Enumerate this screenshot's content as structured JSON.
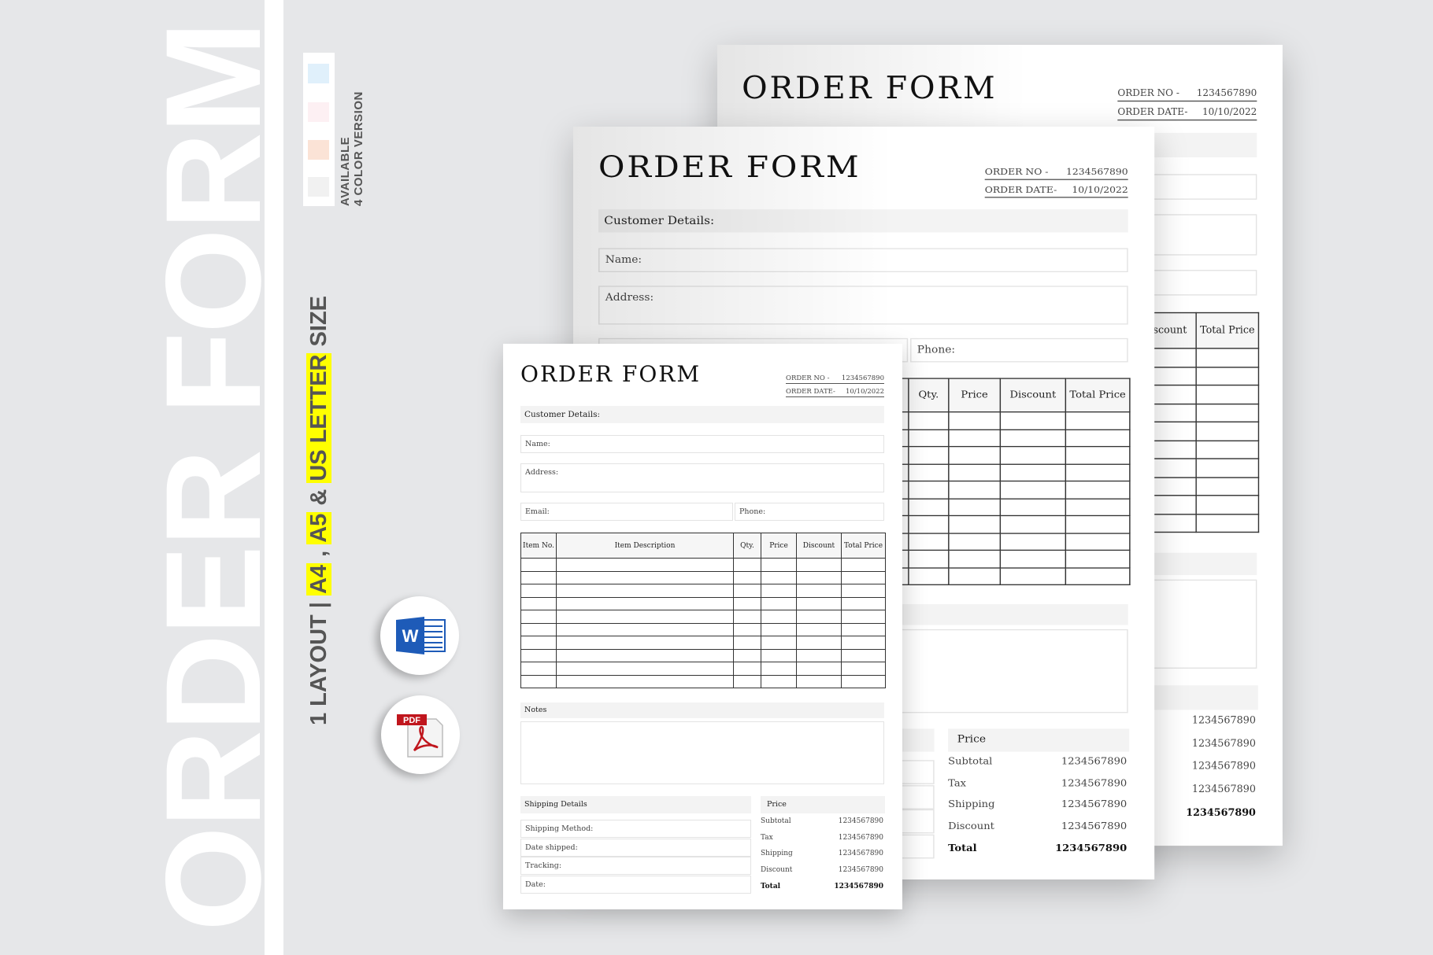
{
  "sidebar": {
    "title": "ORDER FORM",
    "tagline": {
      "lead": "1 LAYOUT | ",
      "a4": "A4",
      "comma": " , ",
      "a5": "A5",
      "amp": " & ",
      "letter": "US LETTER",
      "size": " SIZE"
    },
    "available": "AVAILABLE",
    "colors_label": "4 COLOR VERSION",
    "highlight_color": "#ffff00",
    "swatches": [
      "#e0f0fb",
      "#fdf0f3",
      "#fbe3d6",
      "#f1f1f1"
    ]
  },
  "formats": [
    {
      "name": "Word",
      "icon": "word-icon",
      "glyph": "W",
      "color": "#1e5bb8"
    },
    {
      "name": "PDF",
      "icon": "pdf-icon",
      "glyph": "PDF",
      "color": "#c0161d"
    }
  ],
  "form": {
    "title": "ORDER FORM",
    "order_no_label": "ORDER NO -",
    "order_no": "1234567890",
    "order_date_label": "ORDER DATE-",
    "order_date": "10/10/2022",
    "customer_header": "Customer Details:",
    "name_label": "Name:",
    "address_label": "Address:",
    "email_label": "Email:",
    "phone_label": "Phone:",
    "columns": [
      "Item No.",
      "Item Description",
      "Qty.",
      "Price",
      "Discount",
      "Total Price"
    ],
    "row_count": 10,
    "notes_header": "Notes",
    "shipping_header": "Shipping Details",
    "shipping_fields": [
      "Shipping Method:",
      "Date shipped:",
      "Tracking:",
      "Date:"
    ],
    "price_header": "Price",
    "price_rows": [
      {
        "label": "Subtotal",
        "value": "1234567890"
      },
      {
        "label": "Tax",
        "value": "1234567890"
      },
      {
        "label": "Shipping",
        "value": "1234567890"
      },
      {
        "label": "Discount",
        "value": "1234567890"
      },
      {
        "label": "Total",
        "value": "1234567890"
      }
    ]
  }
}
